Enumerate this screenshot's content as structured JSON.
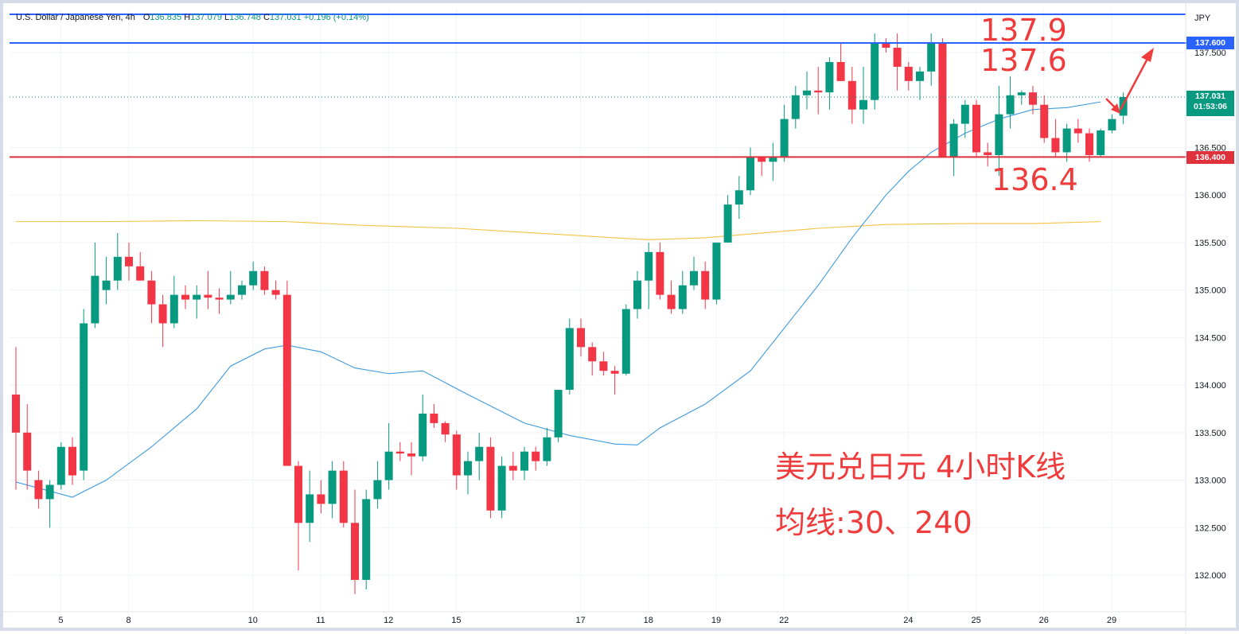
{
  "header": {
    "symbol": "U.S. Dollar / Japanese Yen, 4h",
    "open_label": "O",
    "open": "136.835",
    "high_label": "H",
    "high": "137.079",
    "low_label": "L",
    "low": "136.748",
    "close_label": "C",
    "close": "137.031",
    "change": "+0.196 (+0.14%)"
  },
  "currency": "JPY",
  "annotations": {
    "level_top": "137.9",
    "level_mid": "137.6",
    "level_low": "136.4",
    "title_line1": "美元兑日元 4小时K线",
    "title_line2": "均线:30、240"
  },
  "price_labels": {
    "resistance": "137.600",
    "current": "137.031",
    "countdown": "01:53:06",
    "support": "136.400"
  },
  "colors": {
    "up": "#089981",
    "down": "#f23645",
    "ma30": "#3c9ae0",
    "ma240": "#f5c242",
    "resistance_line": "#2962ff",
    "support_line": "#e0323c",
    "annotation": "#ef3b3b"
  },
  "chart_data": {
    "type": "candlestick",
    "title": "U.S. Dollar / Japanese Yen, 4h",
    "ylim": [
      131.75,
      137.9
    ],
    "y_ticks": [
      "132.000",
      "132.500",
      "133.000",
      "133.500",
      "134.000",
      "134.500",
      "135.000",
      "135.500",
      "136.000",
      "136.500",
      "137.500"
    ],
    "x_ticks": [
      {
        "label": "5",
        "bar": 2
      },
      {
        "label": "8",
        "bar": 8
      },
      {
        "label": "10",
        "bar": 19
      },
      {
        "label": "11",
        "bar": 25
      },
      {
        "label": "12",
        "bar": 31
      },
      {
        "label": "15",
        "bar": 37
      },
      {
        "label": "17",
        "bar": 48
      },
      {
        "label": "18",
        "bar": 54
      },
      {
        "label": "19",
        "bar": 60
      },
      {
        "label": "22",
        "bar": 66
      },
      {
        "label": "24",
        "bar": 77
      },
      {
        "label": "25",
        "bar": 83
      },
      {
        "label": "26",
        "bar": 89
      },
      {
        "label": "29",
        "bar": 95
      }
    ],
    "horizontal_lines": [
      {
        "label": "137.600",
        "value": 137.6
      },
      {
        "label": "136.400",
        "value": 136.4
      }
    ],
    "last_price": 137.031,
    "ohlc": [
      [
        133.9,
        134.4,
        132.9,
        133.5
      ],
      [
        133.5,
        133.8,
        132.9,
        133.1
      ],
      [
        133.0,
        133.1,
        132.7,
        132.8
      ],
      [
        132.8,
        133.0,
        132.5,
        132.95
      ],
      [
        132.95,
        133.4,
        132.9,
        133.35
      ],
      [
        133.35,
        133.45,
        132.95,
        133.05
      ],
      [
        133.1,
        134.8,
        133.0,
        134.65
      ],
      [
        134.65,
        135.5,
        134.6,
        135.15
      ],
      [
        135.0,
        135.35,
        134.85,
        135.1
      ],
      [
        135.1,
        135.6,
        135.0,
        135.35
      ],
      [
        135.35,
        135.5,
        135.1,
        135.25
      ],
      [
        135.25,
        135.4,
        135.1,
        135.1
      ],
      [
        135.1,
        135.2,
        134.65,
        134.85
      ],
      [
        134.85,
        134.95,
        134.4,
        134.65
      ],
      [
        134.65,
        135.15,
        134.6,
        134.95
      ],
      [
        134.95,
        135.05,
        134.8,
        134.9
      ],
      [
        134.9,
        135.05,
        134.7,
        134.95
      ],
      [
        134.95,
        135.2,
        134.8,
        134.92
      ],
      [
        134.92,
        135.02,
        134.75,
        134.9
      ],
      [
        134.9,
        135.2,
        134.85,
        134.95
      ],
      [
        134.95,
        135.1,
        134.9,
        135.05
      ],
      [
        135.05,
        135.3,
        135.0,
        135.2
      ],
      [
        135.2,
        135.25,
        134.95,
        135.0
      ],
      [
        135.0,
        135.1,
        134.9,
        134.95
      ],
      [
        134.95,
        135.1,
        133.2,
        133.15
      ],
      [
        133.15,
        133.2,
        132.05,
        132.55
      ],
      [
        132.55,
        133.1,
        132.35,
        132.85
      ],
      [
        132.85,
        133.0,
        132.65,
        132.75
      ],
      [
        132.75,
        133.2,
        132.6,
        133.1
      ],
      [
        133.1,
        133.2,
        132.5,
        132.55
      ],
      [
        132.55,
        132.9,
        131.8,
        131.95
      ],
      [
        131.95,
        132.9,
        131.85,
        132.8
      ],
      [
        132.8,
        133.2,
        132.7,
        133.0
      ],
      [
        133.0,
        133.6,
        132.9,
        133.3
      ],
      [
        133.3,
        133.4,
        133.2,
        133.28
      ],
      [
        133.28,
        133.4,
        133.05,
        133.25
      ],
      [
        133.25,
        133.9,
        133.2,
        133.7
      ],
      [
        133.7,
        133.8,
        133.55,
        133.6
      ],
      [
        133.6,
        133.62,
        133.4,
        133.48
      ],
      [
        133.48,
        133.52,
        132.9,
        133.05
      ],
      [
        133.05,
        133.3,
        132.85,
        133.2
      ],
      [
        133.2,
        133.5,
        133.0,
        133.35
      ],
      [
        133.35,
        133.45,
        132.6,
        132.68
      ],
      [
        132.68,
        133.25,
        132.6,
        133.15
      ],
      [
        133.15,
        133.3,
        133.0,
        133.1
      ],
      [
        133.1,
        133.35,
        133.0,
        133.3
      ],
      [
        133.3,
        133.35,
        133.1,
        133.2
      ],
      [
        133.2,
        133.55,
        133.15,
        133.45
      ],
      [
        133.45,
        133.95,
        133.4,
        133.95
      ],
      [
        133.95,
        134.7,
        133.9,
        134.6
      ],
      [
        134.6,
        134.7,
        134.3,
        134.4
      ],
      [
        134.4,
        134.45,
        134.1,
        134.25
      ],
      [
        134.25,
        134.35,
        134.1,
        134.15
      ],
      [
        134.15,
        134.2,
        133.9,
        134.12
      ],
      [
        134.12,
        134.85,
        134.1,
        134.8
      ],
      [
        134.8,
        135.2,
        134.7,
        135.1
      ],
      [
        135.1,
        135.5,
        134.8,
        135.4
      ],
      [
        135.4,
        135.5,
        134.9,
        134.95
      ],
      [
        134.95,
        135.1,
        134.75,
        134.8
      ],
      [
        134.8,
        135.2,
        134.75,
        135.05
      ],
      [
        135.05,
        135.35,
        135.0,
        135.2
      ],
      [
        135.2,
        135.3,
        134.8,
        134.9
      ],
      [
        134.9,
        135.5,
        134.85,
        135.5
      ],
      [
        135.5,
        136.0,
        135.5,
        135.9
      ],
      [
        135.9,
        136.2,
        135.75,
        136.05
      ],
      [
        136.05,
        136.5,
        136.0,
        136.4
      ],
      [
        136.4,
        136.4,
        136.2,
        136.35
      ],
      [
        136.35,
        136.55,
        136.15,
        136.4
      ],
      [
        136.4,
        136.95,
        136.35,
        136.8
      ],
      [
        136.8,
        137.15,
        136.7,
        137.05
      ],
      [
        137.05,
        137.3,
        136.9,
        137.1
      ],
      [
        137.1,
        137.35,
        136.85,
        137.08
      ],
      [
        137.08,
        137.45,
        136.9,
        137.4
      ],
      [
        137.4,
        137.6,
        137.2,
        137.2
      ],
      [
        137.2,
        137.35,
        136.75,
        136.9
      ],
      [
        136.9,
        137.35,
        136.75,
        137.0
      ],
      [
        137.0,
        137.7,
        136.9,
        137.6
      ],
      [
        137.6,
        137.65,
        137.5,
        137.55
      ],
      [
        137.55,
        137.7,
        137.1,
        137.35
      ],
      [
        137.35,
        137.4,
        137.1,
        137.2
      ],
      [
        137.2,
        137.35,
        137.0,
        137.3
      ],
      [
        137.3,
        137.7,
        137.15,
        137.6
      ],
      [
        137.6,
        137.65,
        136.4,
        136.4
      ],
      [
        136.4,
        136.8,
        136.2,
        136.75
      ],
      [
        136.75,
        137.0,
        136.6,
        136.95
      ],
      [
        136.95,
        137.0,
        136.4,
        136.45
      ],
      [
        136.45,
        136.55,
        136.3,
        136.42
      ],
      [
        136.42,
        137.15,
        136.2,
        136.85
      ],
      [
        136.85,
        137.25,
        136.7,
        137.05
      ],
      [
        137.05,
        137.1,
        136.95,
        137.08
      ],
      [
        137.08,
        137.15,
        136.85,
        136.95
      ],
      [
        136.95,
        137.05,
        136.55,
        136.6
      ],
      [
        136.6,
        136.8,
        136.4,
        136.45
      ],
      [
        136.45,
        136.75,
        136.35,
        136.7
      ],
      [
        136.7,
        136.8,
        136.55,
        136.65
      ],
      [
        136.65,
        136.7,
        136.35,
        136.42
      ],
      [
        136.42,
        136.7,
        136.4,
        136.68
      ],
      [
        136.68,
        136.85,
        136.65,
        136.8
      ],
      [
        136.835,
        137.079,
        136.748,
        137.031
      ]
    ],
    "series": [
      {
        "name": "MA30",
        "type": "line",
        "points": [
          [
            0,
            132.98
          ],
          [
            5,
            132.82
          ],
          [
            8,
            133.0
          ],
          [
            12,
            133.35
          ],
          [
            16,
            133.75
          ],
          [
            19,
            134.2
          ],
          [
            22,
            134.38
          ],
          [
            24,
            134.42
          ],
          [
            27,
            134.35
          ],
          [
            30,
            134.18
          ],
          [
            33,
            134.12
          ],
          [
            36,
            134.15
          ],
          [
            40,
            133.9
          ],
          [
            45,
            133.6
          ],
          [
            49,
            133.47
          ],
          [
            53,
            133.38
          ],
          [
            55,
            133.37
          ],
          [
            57,
            133.55
          ],
          [
            61,
            133.8
          ],
          [
            65,
            134.15
          ],
          [
            68,
            134.6
          ],
          [
            71,
            135.05
          ],
          [
            74,
            135.55
          ],
          [
            77,
            136.0
          ],
          [
            79,
            136.25
          ],
          [
            81,
            136.45
          ],
          [
            84,
            136.65
          ],
          [
            87,
            136.8
          ],
          [
            90,
            136.9
          ],
          [
            93,
            136.92
          ],
          [
            96,
            136.98
          ]
        ]
      },
      {
        "name": "MA240",
        "type": "line",
        "points": [
          [
            0,
            135.72
          ],
          [
            8,
            135.72
          ],
          [
            16,
            135.73
          ],
          [
            24,
            135.72
          ],
          [
            31,
            135.68
          ],
          [
            39,
            135.65
          ],
          [
            46,
            135.6
          ],
          [
            53,
            135.55
          ],
          [
            56,
            135.53
          ],
          [
            61,
            135.55
          ],
          [
            66,
            135.6
          ],
          [
            71,
            135.65
          ],
          [
            77,
            135.69
          ],
          [
            84,
            135.7
          ],
          [
            90,
            135.7
          ],
          [
            96,
            135.72
          ]
        ]
      }
    ]
  }
}
